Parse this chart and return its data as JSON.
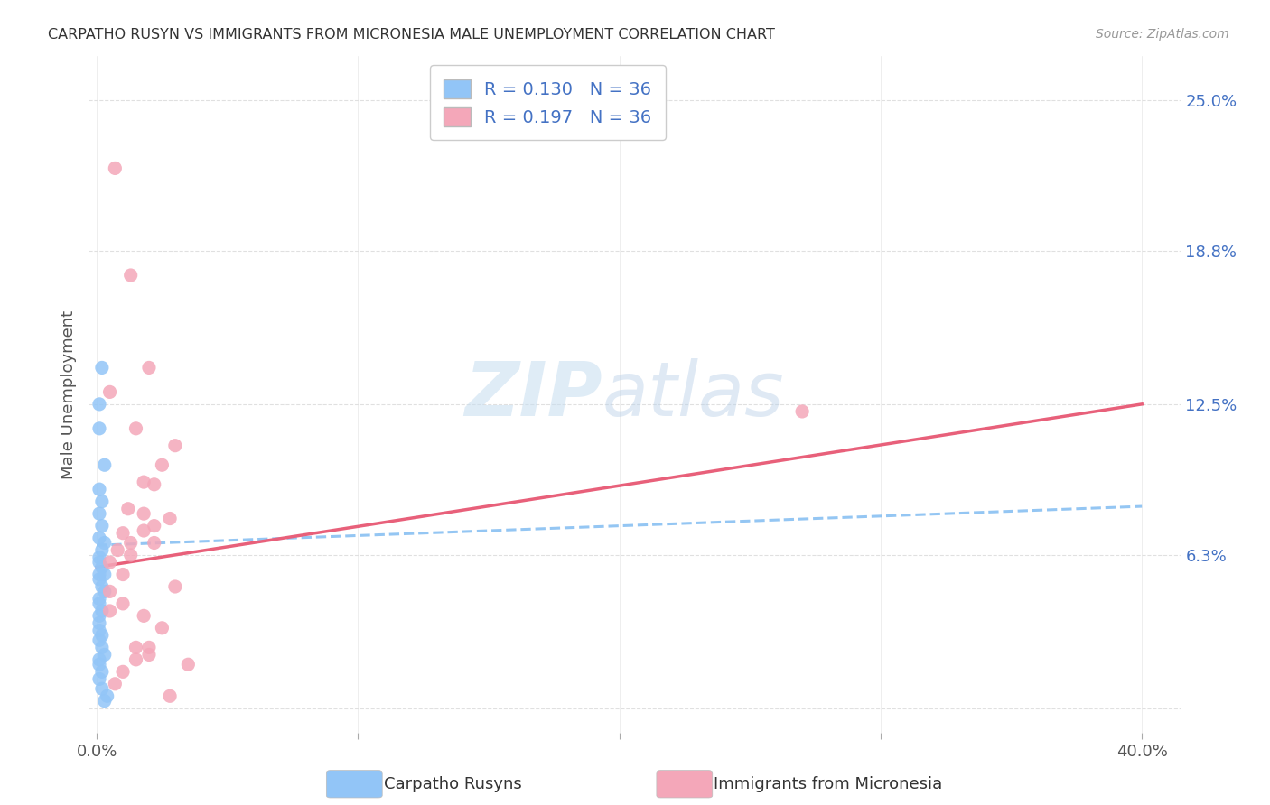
{
  "title": "CARPATHO RUSYN VS IMMIGRANTS FROM MICRONESIA MALE UNEMPLOYMENT CORRELATION CHART",
  "source": "Source: ZipAtlas.com",
  "ylabel": "Male Unemployment",
  "ytick_vals": [
    0.0,
    0.063,
    0.125,
    0.188,
    0.25
  ],
  "ytick_labels": [
    "",
    "6.3%",
    "12.5%",
    "18.8%",
    "25.0%"
  ],
  "xtick_vals": [
    0.0,
    0.1,
    0.2,
    0.3,
    0.4
  ],
  "xtick_labels": [
    "0.0%",
    "",
    "",
    "",
    "40.0%"
  ],
  "xlim": [
    -0.003,
    0.415
  ],
  "ylim": [
    -0.01,
    0.268
  ],
  "r1": 0.13,
  "n1": 36,
  "r2": 0.197,
  "n2": 36,
  "color1": "#92c5f7",
  "color2": "#f4a7b9",
  "trend1_color": "#7ab8f0",
  "trend2_color": "#e8607a",
  "watermark_zip": "ZIP",
  "watermark_atlas": "atlas",
  "legend_labels": [
    "Carpatho Rusyns",
    "Immigrants from Micronesia"
  ],
  "blue_trend_x": [
    0.0,
    0.4
  ],
  "blue_trend_y": [
    0.067,
    0.083
  ],
  "pink_trend_x": [
    0.0,
    0.4
  ],
  "pink_trend_y": [
    0.058,
    0.125
  ],
  "blue_x": [
    0.001,
    0.002,
    0.001,
    0.003,
    0.001,
    0.002,
    0.001,
    0.002,
    0.001,
    0.003,
    0.002,
    0.001,
    0.001,
    0.002,
    0.001,
    0.003,
    0.001,
    0.002,
    0.003,
    0.001,
    0.001,
    0.002,
    0.001,
    0.001,
    0.001,
    0.002,
    0.001,
    0.002,
    0.003,
    0.001,
    0.001,
    0.002,
    0.001,
    0.002,
    0.004,
    0.003
  ],
  "blue_y": [
    0.125,
    0.14,
    0.115,
    0.1,
    0.09,
    0.085,
    0.08,
    0.075,
    0.07,
    0.068,
    0.065,
    0.062,
    0.06,
    0.058,
    0.055,
    0.055,
    0.053,
    0.05,
    0.048,
    0.045,
    0.043,
    0.04,
    0.038,
    0.035,
    0.032,
    0.03,
    0.028,
    0.025,
    0.022,
    0.02,
    0.018,
    0.015,
    0.012,
    0.008,
    0.005,
    0.003
  ],
  "pink_x": [
    0.007,
    0.013,
    0.02,
    0.005,
    0.015,
    0.025,
    0.018,
    0.022,
    0.03,
    0.012,
    0.018,
    0.028,
    0.022,
    0.018,
    0.013,
    0.022,
    0.008,
    0.013,
    0.005,
    0.01,
    0.03,
    0.005,
    0.01,
    0.005,
    0.018,
    0.025,
    0.02,
    0.015,
    0.01,
    0.007,
    0.028,
    0.27,
    0.01,
    0.015,
    0.02,
    0.035
  ],
  "pink_y": [
    0.222,
    0.178,
    0.14,
    0.13,
    0.115,
    0.1,
    0.093,
    0.092,
    0.108,
    0.082,
    0.08,
    0.078,
    0.075,
    0.073,
    0.068,
    0.068,
    0.065,
    0.063,
    0.06,
    0.055,
    0.05,
    0.048,
    0.043,
    0.04,
    0.038,
    0.033,
    0.025,
    0.02,
    0.015,
    0.01,
    0.005,
    0.122,
    0.072,
    0.025,
    0.022,
    0.018
  ]
}
